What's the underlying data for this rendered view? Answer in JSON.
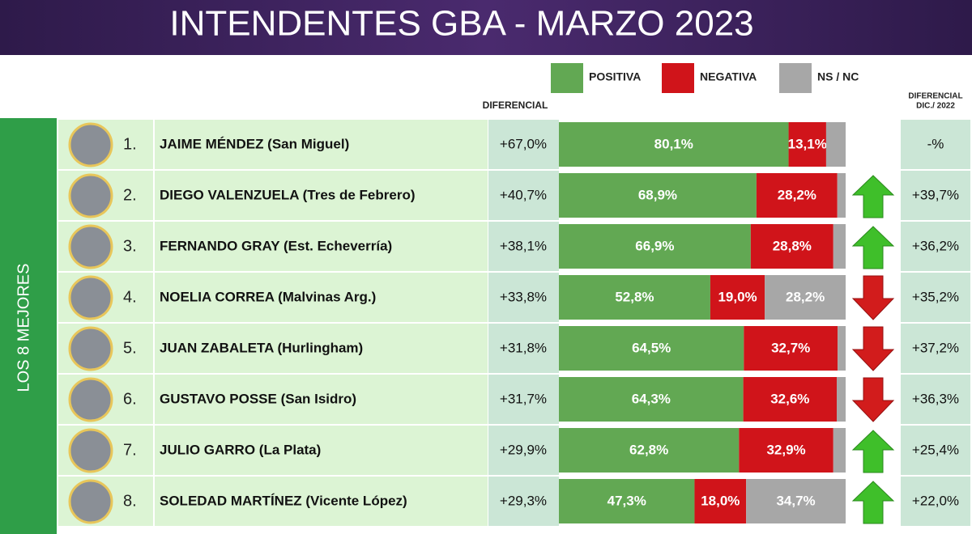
{
  "chart_data": {
    "type": "bar",
    "orientation": "horizontal",
    "stacked": true,
    "title": "INTENDENTES GBA - MARZO 2023",
    "group_label": "LOS 8 MEJORES",
    "diff_header": "DIFERENCIAL",
    "prev_header": [
      "DIFERENCIAL",
      "DIC./ 2022"
    ],
    "ranks": [
      "1.",
      "2.",
      "3.",
      "4.",
      "5.",
      "6.",
      "7.",
      "8."
    ],
    "categories": [
      "JAIME MÉNDEZ (San Miguel)",
      "DIEGO VALENZUELA (Tres de Febrero)",
      "FERNANDO GRAY (Est. Echeverría)",
      "NOELIA CORREA (Malvinas Arg.)",
      "JUAN ZABALETA (Hurlingham)",
      "GUSTAVO POSSE (San Isidro)",
      "JULIO GARRO (La Plata)",
      "SOLEDAD MARTÍNEZ (Vicente López)"
    ],
    "diferencial": [
      "+67,0%",
      "+40,7%",
      "+38,1%",
      "+33,8%",
      "+31,8%",
      "+31,7%",
      "+29,9%",
      "+29,3%"
    ],
    "diferencial_dic_2022": [
      "-%",
      "+39,7%",
      "+36,2%",
      "+35,2%",
      "+37,2%",
      "+36,3%",
      "+25,4%",
      "+22,0%"
    ],
    "trend": [
      null,
      "up",
      "up",
      "down",
      "down",
      "down",
      "up",
      "up"
    ],
    "xlim": [
      0,
      100
    ],
    "series": [
      {
        "name": "POSITIVA",
        "color": "#62a853",
        "values": [
          80.1,
          68.9,
          66.9,
          52.8,
          64.5,
          64.3,
          62.8,
          47.3
        ],
        "value_labels": [
          "80,1%",
          "68,9%",
          "66,9%",
          "52,8%",
          "64,5%",
          "64,3%",
          "62,8%",
          "47,3%"
        ]
      },
      {
        "name": "NEGATIVA",
        "color": "#d0141a",
        "values": [
          13.1,
          28.2,
          28.8,
          19.0,
          32.7,
          32.6,
          32.9,
          18.0
        ],
        "value_labels": [
          "13,1%",
          "28,2%",
          "28,8%",
          "19,0%",
          "32,7%",
          "32,6%",
          "32,9%",
          "18,0%"
        ]
      },
      {
        "name": "NS / NC",
        "color": "#a7a7a7",
        "values": [
          6.8,
          2.9,
          4.3,
          28.2,
          2.8,
          3.1,
          4.3,
          34.7
        ],
        "value_labels": [
          null,
          null,
          null,
          "28,2%",
          null,
          null,
          null,
          "34,7%"
        ]
      }
    ]
  }
}
